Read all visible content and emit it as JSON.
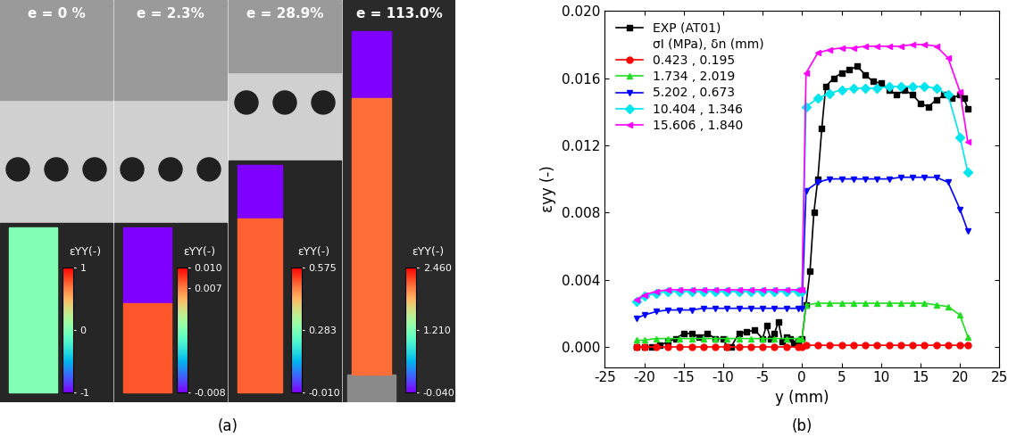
{
  "image_panel": {
    "panel_label": "(a)",
    "frames": [
      {
        "strain_label": "e = 0 %",
        "colorbar_label": "εYY(-)",
        "colorbar_range": [
          -1,
          1
        ],
        "colorbar_ticks": [
          -1,
          0,
          1
        ],
        "upper_strain": 0,
        "lower_strain": 0
      },
      {
        "strain_label": "e = 2.3%",
        "colorbar_label": "εYY(-)",
        "colorbar_range": [
          -0.008,
          0.01
        ],
        "colorbar_ticks": [
          {
            "value": -0.008,
            "label": "-0.008"
          },
          {
            "value": 0.007,
            "label": "0.007"
          },
          {
            "value": 0.01,
            "label": "0.010"
          }
        ],
        "upper_strain": -0.008,
        "lower_strain": 0.008
      },
      {
        "strain_label": "e = 28.9%",
        "colorbar_label": "εYY(-)",
        "colorbar_range": [
          -0.01,
          0.575
        ],
        "colorbar_ticks": [
          {
            "value": -0.01,
            "label": "-0.010"
          },
          {
            "value": 0.283,
            "label": "0.283"
          },
          {
            "value": 0.575,
            "label": "0.575"
          }
        ],
        "upper_strain": -0.01,
        "lower_strain": 0.5
      },
      {
        "strain_label": "e = 113.0%",
        "colorbar_label": "εYY(-)",
        "colorbar_range": [
          -0.04,
          2.46
        ],
        "colorbar_ticks": [
          {
            "value": -0.04,
            "label": "-0.040"
          },
          {
            "value": 1.21,
            "label": "1.210"
          },
          {
            "value": 2.46,
            "label": "2.460"
          }
        ],
        "upper_strain": -0.04,
        "lower_strain": 2.1
      }
    ]
  },
  "chart_data": {
    "type": "line",
    "panel_label": "(b)",
    "x_label": "y (mm)",
    "y_label": "εyy (-)",
    "legend_heading": "σI (MPa), δn (mm)",
    "legend": "upper left",
    "xlim": [
      -25,
      25
    ],
    "xticks": [
      -25,
      -20,
      -15,
      -10,
      -5,
      0,
      5,
      10,
      15,
      20,
      25
    ],
    "ylim": [
      -0.0012,
      0.02
    ],
    "yticks": [
      {
        "value": 0,
        "label": "0.000"
      },
      {
        "value": 0.004,
        "label": "0.004"
      },
      {
        "value": 0.008,
        "label": "0.008"
      },
      {
        "value": 0.012,
        "label": "0.012"
      },
      {
        "value": 0.016,
        "label": "0.016"
      },
      {
        "value": 0.02,
        "label": "0.020"
      }
    ],
    "grid": false,
    "series": [
      {
        "name": "EXP (AT01)",
        "color": "#000000",
        "marker": "square",
        "line_style": "solid",
        "x": [
          -21,
          -20,
          -19,
          -18,
          -17,
          -16,
          -15,
          -14,
          -13,
          -12,
          -11,
          -10,
          -9.5,
          -9,
          -8,
          -7,
          -6,
          -5,
          -4.5,
          -4,
          -3.5,
          -3,
          -2.5,
          -2,
          -1.5,
          -1,
          -0.5,
          0,
          0.5,
          1,
          1.5,
          2,
          2.5,
          3,
          4,
          5,
          6,
          7,
          8,
          9,
          10,
          11,
          12,
          13,
          14,
          15,
          16,
          17,
          18,
          19,
          20,
          20.5,
          21
        ],
        "values": [
          0,
          0,
          0,
          0.0001,
          0.0003,
          0.0005,
          0.0008,
          0.0008,
          0.0006,
          0.0008,
          0.0005,
          0.0005,
          0,
          0,
          0.0008,
          0.0009,
          0.001,
          0.0005,
          0.0013,
          0.0005,
          0.0008,
          0.0015,
          0.0003,
          0.0006,
          0.0005,
          0.0002,
          0.0003,
          0.0005,
          0.0025,
          0.0045,
          0.008,
          0.01,
          0.013,
          0.0155,
          0.016,
          0.0163,
          0.0165,
          0.0167,
          0.0162,
          0.0158,
          0.0157,
          0.0153,
          0.015,
          0.0153,
          0.015,
          0.0145,
          0.0143,
          0.0147,
          0.015,
          0.0148,
          0.015,
          0.0148,
          0.0142
        ]
      },
      {
        "name": "0.423 , 0.195",
        "color": "#ff0000",
        "marker": "circle",
        "line_style": "solid",
        "x": [
          -21,
          -20,
          -18.5,
          -17,
          -15.5,
          -14,
          -12.5,
          -11,
          -9.5,
          -8,
          -6.5,
          -5,
          -3.5,
          -2,
          -0.5,
          0,
          0.5,
          2,
          3.5,
          5,
          6.5,
          8,
          9.5,
          11,
          12.5,
          14,
          15.5,
          17,
          18.5,
          20,
          21
        ],
        "values": [
          0,
          0,
          0,
          0,
          0,
          0,
          0,
          0,
          0,
          0,
          0,
          0,
          0,
          0,
          0,
          0,
          0.0001,
          0.0001,
          0.0001,
          0.0001,
          0.0001,
          0.0001,
          0.0001,
          0.0001,
          0.0001,
          0.0001,
          0.0001,
          0.0001,
          0.0001,
          0.0001,
          0.0001
        ]
      },
      {
        "name": "1.734 , 2.019",
        "color": "#22dd22",
        "marker": "triangle_up",
        "line_style": "solid",
        "x": [
          -21,
          -20,
          -18.5,
          -17,
          -15.5,
          -14,
          -12.5,
          -11,
          -9.5,
          -8,
          -6.5,
          -5,
          -3.5,
          -2,
          -0.5,
          0,
          0.5,
          2,
          3.5,
          5,
          6.5,
          8,
          9.5,
          11,
          12.5,
          14,
          15.5,
          17,
          18.5,
          20,
          21
        ],
        "values": [
          0.0004,
          0.0004,
          0.0005,
          0.0005,
          0.0005,
          0.0005,
          0.0005,
          0.0005,
          0.0005,
          0.0005,
          0.0005,
          0.0005,
          0.0005,
          0.0005,
          0.0005,
          0.0005,
          0.0025,
          0.0026,
          0.0026,
          0.0026,
          0.0026,
          0.0026,
          0.0026,
          0.0026,
          0.0026,
          0.0026,
          0.0026,
          0.0025,
          0.0024,
          0.0019,
          0.0006
        ]
      },
      {
        "name": "5.202 , 0.673",
        "color": "#0000ff",
        "marker": "triangle_down",
        "line_style": "solid",
        "x": [
          -21,
          -20,
          -18.5,
          -17,
          -15.5,
          -14,
          -12.5,
          -11,
          -9.5,
          -8,
          -6.5,
          -5,
          -3.5,
          -2,
          -0.5,
          0,
          0.5,
          2,
          3.5,
          5,
          6.5,
          8,
          9.5,
          11,
          12.5,
          14,
          15.5,
          17,
          18.5,
          20,
          21
        ],
        "values": [
          0.0017,
          0.0019,
          0.0021,
          0.0022,
          0.0022,
          0.0022,
          0.0023,
          0.0023,
          0.0023,
          0.0023,
          0.0023,
          0.0023,
          0.0023,
          0.0023,
          0.0023,
          0.0023,
          0.0093,
          0.0098,
          0.01,
          0.01,
          0.01,
          0.01,
          0.01,
          0.01,
          0.0101,
          0.0101,
          0.0101,
          0.0101,
          0.0098,
          0.0082,
          0.0069
        ]
      },
      {
        "name": "10.404 , 1.346",
        "color": "#00e5ee",
        "marker": "diamond",
        "line_style": "solid",
        "x": [
          -21,
          -20,
          -18.5,
          -17,
          -15.5,
          -14,
          -12.5,
          -11,
          -9.5,
          -8,
          -6.5,
          -5,
          -3.5,
          -2,
          -0.5,
          0,
          0.5,
          2,
          3.5,
          5,
          6.5,
          8,
          9.5,
          11,
          12.5,
          14,
          15.5,
          17,
          18.5,
          20,
          21
        ],
        "values": [
          0.0027,
          0.003,
          0.0032,
          0.0033,
          0.0033,
          0.0033,
          0.0033,
          0.0033,
          0.0033,
          0.0033,
          0.0033,
          0.0033,
          0.0033,
          0.0033,
          0.0033,
          0.0033,
          0.0143,
          0.0148,
          0.0151,
          0.0153,
          0.0154,
          0.0154,
          0.0154,
          0.0155,
          0.0155,
          0.0155,
          0.0155,
          0.0154,
          0.015,
          0.0125,
          0.0104
        ]
      },
      {
        "name": "15.606 , 1.840",
        "color": "#ff00ff",
        "marker": "triangle_left",
        "line_style": "solid",
        "x": [
          -21,
          -20,
          -18.5,
          -17,
          -15.5,
          -14,
          -12.5,
          -11,
          -9.5,
          -8,
          -6.5,
          -5,
          -3.5,
          -2,
          -0.5,
          0,
          0.5,
          2,
          3.5,
          5,
          6.5,
          8,
          9.5,
          11,
          12.5,
          14,
          15.5,
          17,
          18.5,
          20,
          21
        ],
        "values": [
          0.0028,
          0.0031,
          0.0033,
          0.0034,
          0.0034,
          0.0034,
          0.0034,
          0.0034,
          0.0034,
          0.0034,
          0.0034,
          0.0034,
          0.0034,
          0.0034,
          0.0034,
          0.0034,
          0.0163,
          0.0175,
          0.0177,
          0.0178,
          0.0178,
          0.0179,
          0.0179,
          0.0179,
          0.0179,
          0.018,
          0.018,
          0.0179,
          0.0172,
          0.0152,
          0.0122
        ]
      }
    ]
  }
}
